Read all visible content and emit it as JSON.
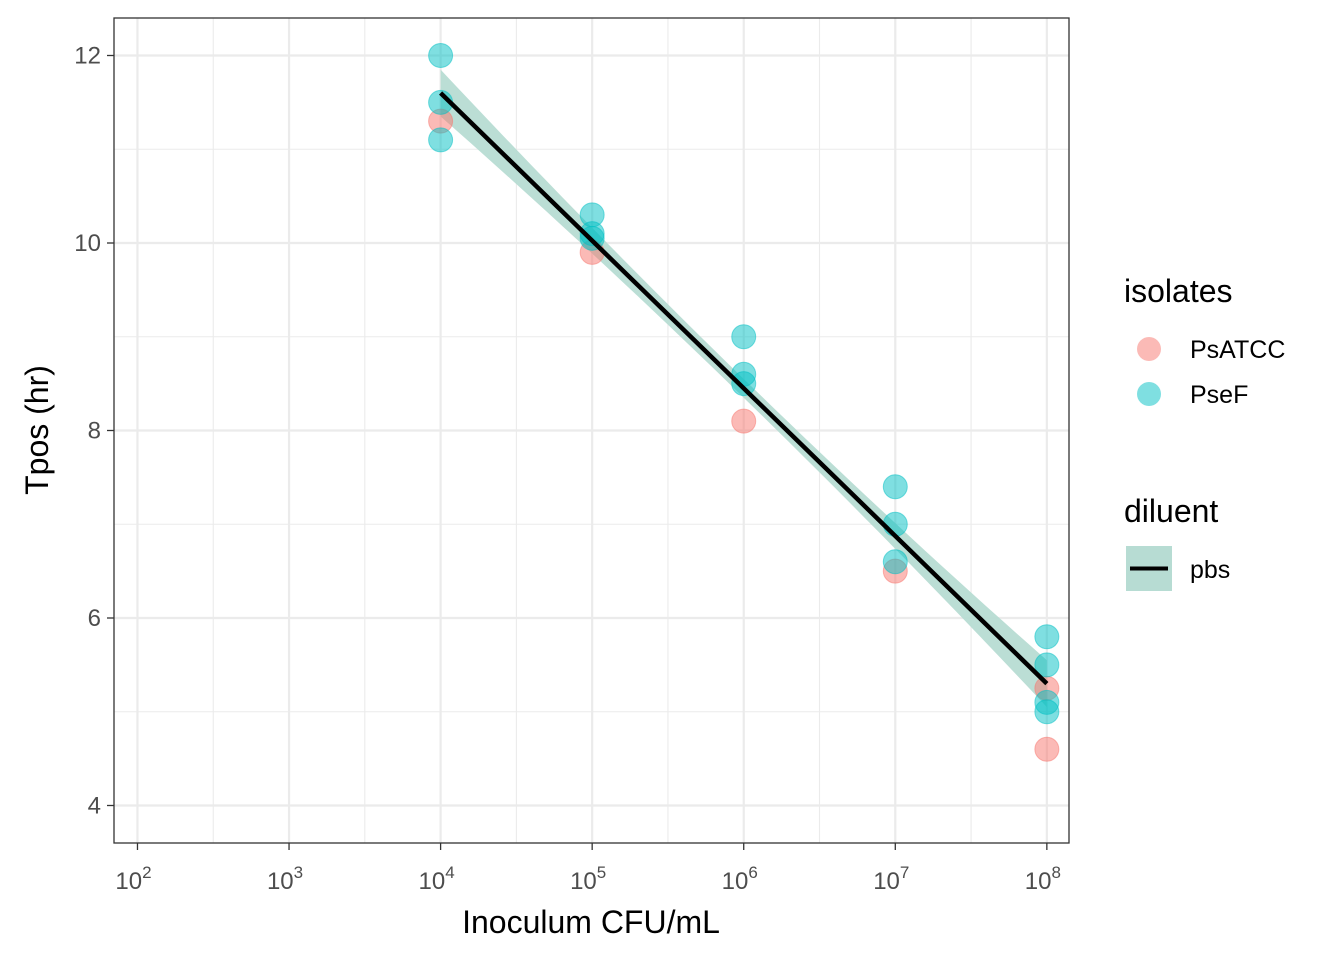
{
  "chart_data": {
    "type": "scatter",
    "xlabel": "Inoculum CFU/mL",
    "ylabel": "Tpos (hr)",
    "x_scale": "log10",
    "x_ticks": [
      {
        "value": 100,
        "base": "10",
        "exp": "2"
      },
      {
        "value": 1000,
        "base": "10",
        "exp": "3"
      },
      {
        "value": 10000,
        "base": "10",
        "exp": "4"
      },
      {
        "value": 100000,
        "base": "10",
        "exp": "5"
      },
      {
        "value": 1000000,
        "base": "10",
        "exp": "6"
      },
      {
        "value": 10000000,
        "base": "10",
        "exp": "7"
      },
      {
        "value": 100000000,
        "base": "10",
        "exp": "8"
      }
    ],
    "y_ticks": [
      "4",
      "6",
      "8",
      "10",
      "12"
    ],
    "xlim": [
      70,
      140000000
    ],
    "ylim": [
      3.6,
      12.4
    ],
    "grid": true,
    "legend_placement": "right",
    "series": [
      {
        "name": "PsATCC",
        "color": "#F8766D",
        "points": [
          {
            "x": 10000,
            "y": 11.3
          },
          {
            "x": 100000,
            "y": 9.9
          },
          {
            "x": 1000000,
            "y": 8.1
          },
          {
            "x": 10000000,
            "y": 6.5
          },
          {
            "x": 100000000,
            "y": 5.25
          },
          {
            "x": 100000000,
            "y": 4.6
          }
        ]
      },
      {
        "name": "PseF",
        "color": "#00BFC4",
        "points": [
          {
            "x": 10000,
            "y": 12.0
          },
          {
            "x": 10000,
            "y": 11.5
          },
          {
            "x": 10000,
            "y": 11.1
          },
          {
            "x": 100000,
            "y": 10.3
          },
          {
            "x": 100000,
            "y": 10.1
          },
          {
            "x": 100000,
            "y": 10.05
          },
          {
            "x": 1000000,
            "y": 9.0
          },
          {
            "x": 1000000,
            "y": 8.6
          },
          {
            "x": 1000000,
            "y": 8.5
          },
          {
            "x": 10000000,
            "y": 7.4
          },
          {
            "x": 10000000,
            "y": 7.0
          },
          {
            "x": 10000000,
            "y": 6.6
          },
          {
            "x": 100000000,
            "y": 5.8
          },
          {
            "x": 100000000,
            "y": 5.5
          },
          {
            "x": 100000000,
            "y": 5.1
          },
          {
            "x": 100000000,
            "y": 5.0
          }
        ]
      }
    ],
    "fit": {
      "name": "pbs",
      "color": "#000000",
      "ribbon_color": "#B7DCD3",
      "x_from": 10000,
      "x_to": 100000000,
      "y_from": 11.6,
      "y_to": 5.3,
      "ci_halfwidth_ends": 0.25,
      "ci_halfwidth_mid": 0.1
    },
    "legends": [
      {
        "title": "isolates",
        "entries": [
          "PsATCC",
          "PseF"
        ]
      },
      {
        "title": "diluent",
        "entries": [
          "pbs"
        ]
      }
    ]
  }
}
